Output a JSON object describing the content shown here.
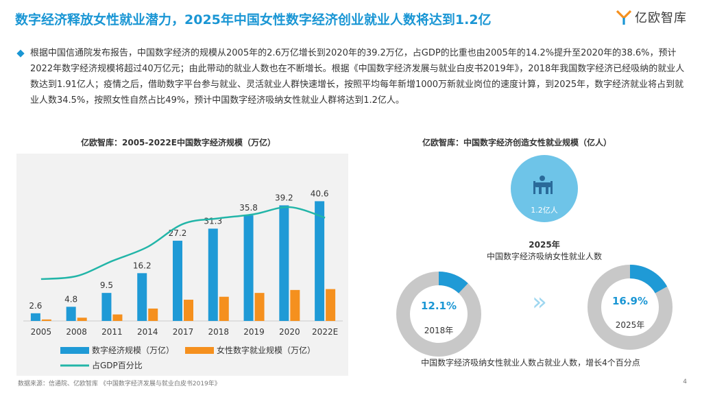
{
  "title": "数字经济释放女性就业潜力，2025年中国女性数字经济创业就业人数将达到1.2亿",
  "logo": {
    "text": "亿欧智库"
  },
  "bullet_text": "根据中国信通院发布报告，中国数字经济的规模从2005年的2.6万亿增长到2020年的39.2万亿，占GDP的比重也由2005年的14.2%提升至2020年的38.6%，预计2022年数字经济规模将超过40万亿元；由此带动的就业人数也在不断增长。根据《中国数字经济发展与就业白皮书2019年》，2018年我国数字经济已经吸纳的就业人数达到1.91亿人；疫情之后，借助数字平台参与就业、灵活就业人群快速增长，按照平均每年新增1000万新就业岗位的速度计算，到2025年，数字经济就业将占到就业人数34.5%，按照女性自然占比49%，预计中国数字经济吸纳女性就业人群将达到1.2亿人。",
  "left_chart_title": "亿欧智库：2005-2022E中国数字经济规模（万亿）",
  "right_chart_title": "亿欧智库：中国数字经济创造女性就业规模（亿人）",
  "chart_data": [
    {
      "type": "bar",
      "title": "亿欧智库：2005-2022E中国数字经济规模（万亿）",
      "categories": [
        "2005",
        "2008",
        "2011",
        "2014",
        "2017",
        "2018",
        "2019",
        "2020",
        "2022E"
      ],
      "series": [
        {
          "name": "数字经济规模（万亿）",
          "type": "bar",
          "color": "#1f9ad6",
          "values": [
            2.6,
            4.8,
            9.5,
            16.2,
            27.2,
            31.3,
            35.8,
            39.2,
            40.6
          ]
        },
        {
          "name": "女性数字就业规模（万亿）",
          "type": "bar",
          "color": "#f5901e",
          "values": [
            0.5,
            1.1,
            2.2,
            4.2,
            7.2,
            8.2,
            9.5,
            10.5,
            10.8
          ]
        },
        {
          "name": "占GDP百分比",
          "type": "line",
          "color": "#22b5a8",
          "values": [
            14.2,
            15.2,
            20.3,
            25.1,
            32.9,
            34.8,
            36.2,
            38.6,
            35.0
          ]
        }
      ],
      "data_labels": [
        "2.6",
        "4.8",
        "9.5",
        "16.2",
        "27.2",
        "31.3",
        "35.8",
        "39.2",
        "40.6"
      ],
      "ylim": [
        0,
        50
      ],
      "line_ylim": [
        0,
        50
      ],
      "grid": false,
      "legend": "bottom"
    },
    {
      "type": "pie",
      "title": "中国数字经济吸纳女性就业人数占就业人数，增长4个百分点",
      "charts": [
        {
          "label": "2018年",
          "value": 12.1,
          "value_label": "12.1%"
        },
        {
          "label": "2025年",
          "value": 16.9,
          "value_label": "16.9%"
        }
      ],
      "colors": {
        "filled": "#1f9ad6",
        "rest": "#c8c8c8"
      }
    }
  ],
  "right_panel": {
    "circle_value": "1.2亿人",
    "year_label": "2025年",
    "caption": "中国数字经济吸纳女性就业人数",
    "donut1_pct": "12.1%",
    "donut1_year": "2018年",
    "donut2_pct": "16.9%",
    "donut2_year": "2025年",
    "arrows": "»",
    "bottom_caption": "中国数字经济吸纳女性就业人数占就业人数，增长4个百分点"
  },
  "footer": "数据来源：信通院、亿欧智库 《中国数字经济发展与就业白皮书2019年》",
  "page_number": "4"
}
